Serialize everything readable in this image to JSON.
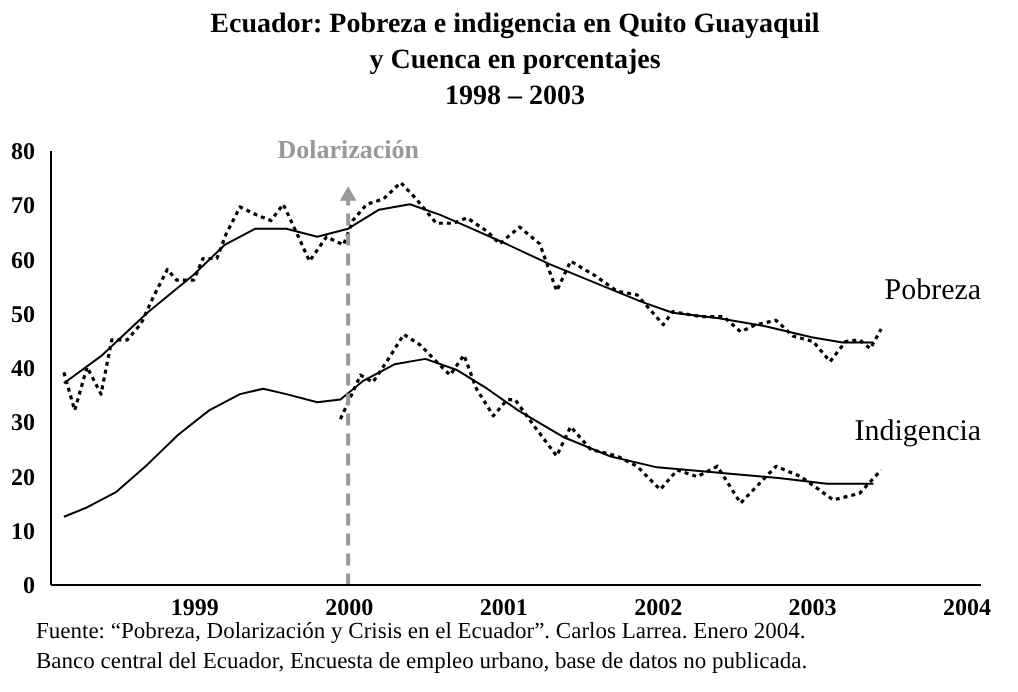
{
  "chart_data": {
    "type": "line",
    "title": "Ecuador: Pobreza e indigencia en Quito Guayaquil\ny Cuenca en porcentajes\n1998 – 2003",
    "annotations": [
      "Fuente: “Pobreza, Dolarización y Crisis en el Ecuador”. Carlos Larrea. Enero 2004.",
      "Banco central del Ecuador, Encuesta de empleo urbano, base de datos no publicada."
    ],
    "xlim": [
      1998.07,
      2004.09
    ],
    "xticks": [
      1999,
      2000,
      2001,
      2002,
      2003,
      2004
    ],
    "ylim": [
      0,
      80
    ],
    "yticks": [
      0,
      10,
      20,
      30,
      40,
      50,
      60,
      70,
      80
    ],
    "grid": false,
    "ref_lines": [
      {
        "axis": "x",
        "value": 2000,
        "label": "Dolarización",
        "color": "#999999",
        "line_style": "dashed"
      }
    ],
    "series": [
      {
        "name": "Pobreza",
        "color": "#000000",
        "line_style": "dotted",
        "x": [
          1998.16,
          1998.23,
          1998.31,
          1998.4,
          1998.47,
          1998.57,
          1998.66,
          1998.74,
          1998.83,
          1998.89,
          1999.0,
          1999.06,
          1999.15,
          1999.21,
          1999.3,
          1999.41,
          1999.5,
          1999.58,
          1999.67,
          1999.75,
          1999.86,
          1999.97,
          2000.03,
          2000.12,
          2000.23,
          2000.34,
          2000.44,
          2000.57,
          2000.68,
          2000.77,
          2000.9,
          2000.98,
          2001.11,
          2001.24,
          2001.35,
          2001.44,
          2001.59,
          2001.74,
          2001.87,
          2002.04,
          2002.1,
          2002.28,
          2002.43,
          2002.54,
          2002.64,
          2002.77,
          2002.88,
          2003.01,
          2003.12,
          2003.22,
          2003.31,
          2003.38,
          2003.45
        ],
        "values": [
          39,
          32,
          40,
          35,
          45,
          45,
          48,
          53,
          58,
          56,
          56,
          60,
          60,
          64.5,
          69.5,
          68,
          67,
          70,
          64.5,
          59.5,
          64,
          62.5,
          67,
          70,
          71,
          74,
          71,
          66.5,
          66.5,
          67.5,
          65,
          62.7,
          65.8,
          62.7,
          54,
          59.5,
          57,
          54,
          53.3,
          47.8,
          50.2,
          49.3,
          49.3,
          46.5,
          47.8,
          48.6,
          45.7,
          44.7,
          41,
          44.7,
          45,
          43.4,
          47
        ]
      },
      {
        "color": "#000000",
        "line_style": "solid",
        "x": [
          1998.16,
          1998.4,
          1998.7,
          1999.0,
          1999.2,
          1999.4,
          1999.6,
          1999.8,
          2000.0,
          2000.2,
          2000.4,
          2000.6,
          2000.8,
          2001.0,
          2001.3,
          2001.6,
          2001.9,
          2002.1,
          2002.4,
          2002.7,
          2003.0,
          2003.2,
          2003.4
        ],
        "values": [
          37,
          42,
          50,
          57,
          62.5,
          65.5,
          65.5,
          64,
          65.5,
          69,
          70,
          68,
          65.5,
          63,
          59,
          55.5,
          52,
          50,
          49,
          47.5,
          45.5,
          44.5,
          44.5
        ]
      },
      {
        "name": "Indigencia",
        "color": "#000000",
        "line_style": "dotted",
        "x": [
          1999.95,
          2000.08,
          2000.16,
          2000.25,
          2000.36,
          2000.47,
          2000.55,
          2000.66,
          2000.75,
          2000.83,
          2000.94,
          2001.03,
          2001.08,
          2001.22,
          2001.35,
          2001.44,
          2001.57,
          2001.74,
          2001.87,
          2002.02,
          2002.13,
          2002.26,
          2002.39,
          2002.54,
          2002.77,
          2002.93,
          2003.14,
          2003.31,
          2003.45
        ],
        "values": [
          30.4,
          38.5,
          37.2,
          41,
          46,
          44,
          41.6,
          38.5,
          42.2,
          36,
          31,
          34,
          34,
          28.5,
          23.6,
          29,
          24.8,
          23.6,
          21.7,
          17.4,
          21,
          19.8,
          21.7,
          14.9,
          21.7,
          19.8,
          15.5,
          16.7,
          21
        ]
      },
      {
        "color": "#000000",
        "line_style": "solid",
        "x": [
          1998.16,
          1998.3,
          1998.5,
          1998.7,
          1998.9,
          1999.1,
          1999.3,
          1999.45,
          1999.6,
          1999.8,
          1999.95,
          2000.1,
          2000.3,
          2000.5,
          2000.7,
          2000.9,
          2001.1,
          2001.4,
          2001.7,
          2002.0,
          2002.4,
          2002.8,
          2003.1,
          2003.4
        ],
        "values": [
          12.4,
          14,
          17,
          22,
          27.5,
          32,
          35,
          36,
          35,
          33.5,
          34,
          37.5,
          40.5,
          41.5,
          39.5,
          36,
          32,
          27,
          23.5,
          21.5,
          20.5,
          19.5,
          18.5,
          18.5
        ]
      }
    ]
  }
}
